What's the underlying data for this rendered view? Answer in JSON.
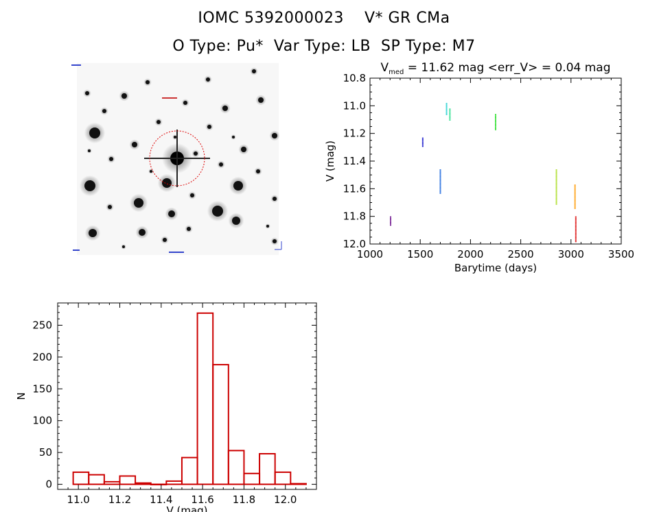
{
  "header": {
    "title": "IOMC 5392000023    V* GR CMa",
    "subtitle": "O Type: Pu*  Var Type: LB  SP Type: M7"
  },
  "finder_chart": {
    "field_label": "",
    "marker_color": "#dd0000"
  },
  "chart_data": [
    {
      "type": "scatter",
      "title_parts": {
        "prefix": "V",
        "subscript": "med",
        "suffix": " = 11.62 mag <err_V> = 0.04 mag"
      },
      "xlabel": "Barytime (days)",
      "ylabel": "V (mag)",
      "xlim": [
        1000,
        3500
      ],
      "ylim": [
        10.8,
        12.0
      ],
      "y_inverted": true,
      "xticks": [
        1000,
        1500,
        2000,
        2500,
        3000,
        3500
      ],
      "yticks": [
        "10.8",
        "11.0",
        "11.2",
        "11.4",
        "11.6",
        "11.8",
        "12.0"
      ],
      "groups": [
        {
          "x": 1205,
          "ymin": 11.8,
          "ymax": 11.86,
          "color": "#6a0c8a"
        },
        {
          "x": 1525,
          "ymin": 11.23,
          "ymax": 11.29,
          "color": "#1a1acc"
        },
        {
          "x": 1700,
          "ymin": 11.46,
          "ymax": 11.63,
          "color": "#1a66dd"
        },
        {
          "x": 1762,
          "ymin": 10.98,
          "ymax": 11.06,
          "color": "#22d0d0"
        },
        {
          "x": 1795,
          "ymin": 11.02,
          "ymax": 11.1,
          "color": "#22dd88"
        },
        {
          "x": 2250,
          "ymin": 11.06,
          "ymax": 11.17,
          "color": "#22dd22"
        },
        {
          "x": 2855,
          "ymin": 11.46,
          "ymax": 11.71,
          "color": "#aadd22"
        },
        {
          "x": 3040,
          "ymin": 11.57,
          "ymax": 11.74,
          "color": "#ff9900"
        },
        {
          "x": 3048,
          "ymin": 11.8,
          "ymax": 11.98,
          "color": "#dd1111"
        }
      ]
    },
    {
      "type": "bar",
      "xlabel": "V (mag)",
      "ylabel": "N",
      "xlim": [
        10.9,
        12.15
      ],
      "ylim": [
        -8,
        285
      ],
      "xticks": [
        "11.0",
        "11.2",
        "11.4",
        "11.6",
        "11.8",
        "12.0"
      ],
      "yticks": [
        "0",
        "50",
        "100",
        "150",
        "200",
        "250"
      ],
      "bin_width": 0.075,
      "bin_starts": [
        10.975,
        11.05,
        11.125,
        11.2,
        11.275,
        11.35,
        11.425,
        11.5,
        11.575,
        11.65,
        11.725,
        11.8,
        11.875,
        11.95,
        12.025
      ],
      "values": [
        19,
        15,
        4,
        13,
        2,
        0,
        5,
        42,
        269,
        188,
        53,
        17,
        48,
        19,
        1
      ],
      "color": "#cc0000"
    }
  ]
}
